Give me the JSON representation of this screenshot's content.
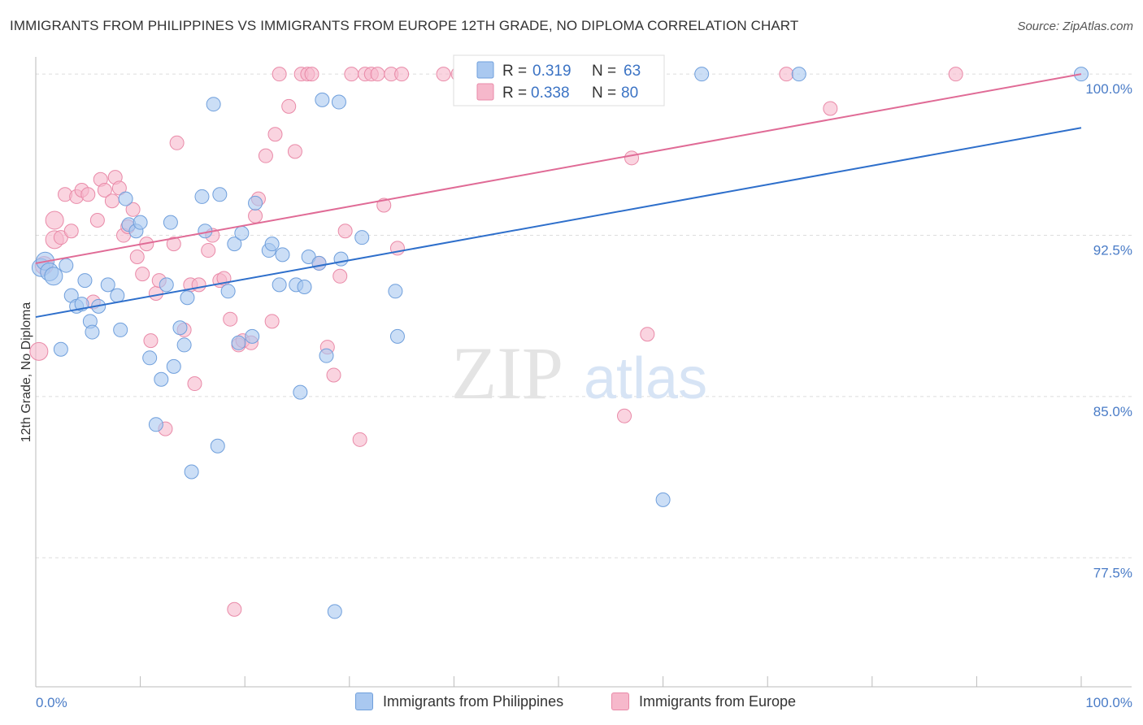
{
  "header": {
    "title": "IMMIGRANTS FROM PHILIPPINES VS IMMIGRANTS FROM EUROPE 12TH GRADE, NO DIPLOMA CORRELATION CHART",
    "source": "Source: ZipAtlas.com"
  },
  "watermark": {
    "zip": "ZIP",
    "atlas": "atlas"
  },
  "legend": {
    "r_label": "R =",
    "n_label": "N =",
    "series": [
      {
        "r": "0.319",
        "n": "63"
      },
      {
        "r": "0.338",
        "n": "80"
      }
    ]
  },
  "colors": {
    "blue_fill": "#a9c8f0",
    "blue_stroke": "#6f9fdc",
    "blue_line": "#2e6fcb",
    "pink_fill": "#f6b8cb",
    "pink_stroke": "#e98aa8",
    "pink_line": "#e06b96",
    "tick_text": "#4a7cc7",
    "grid": "#dddddd"
  },
  "chart_data": {
    "type": "scatter",
    "ylabel": "12th Grade, No Diploma",
    "xlim": [
      0,
      100
    ],
    "ylim": [
      71.5,
      100.8
    ],
    "x_tick_labels": [
      "0.0%",
      "100.0%"
    ],
    "y_ticks": [
      {
        "value": 100.0,
        "label": "100.0%"
      },
      {
        "value": 92.5,
        "label": "92.5%"
      },
      {
        "value": 85.0,
        "label": "85.0%"
      },
      {
        "value": 77.5,
        "label": "77.5%"
      }
    ],
    "grid": true,
    "legend_position": "top-center",
    "series": [
      {
        "name": "Immigrants from Philippines",
        "color": "#a9c8f0",
        "trend": {
          "x": [
            0,
            100
          ],
          "y": [
            88.7,
            97.5
          ]
        },
        "points": [
          [
            0.5,
            91.0
          ],
          [
            0.9,
            91.3
          ],
          [
            1.3,
            90.8
          ],
          [
            1.7,
            90.6
          ],
          [
            2.4,
            87.2
          ],
          [
            2.9,
            91.1
          ],
          [
            3.4,
            89.7
          ],
          [
            3.9,
            89.2
          ],
          [
            4.4,
            89.3
          ],
          [
            4.7,
            90.4
          ],
          [
            5.2,
            88.5
          ],
          [
            5.4,
            88.0
          ],
          [
            6.0,
            89.2
          ],
          [
            6.9,
            90.2
          ],
          [
            7.8,
            89.7
          ],
          [
            8.1,
            88.1
          ],
          [
            8.6,
            94.2
          ],
          [
            8.9,
            93.0
          ],
          [
            9.6,
            92.7
          ],
          [
            10.0,
            93.1
          ],
          [
            10.9,
            86.8
          ],
          [
            11.5,
            83.7
          ],
          [
            12.0,
            85.8
          ],
          [
            12.5,
            90.2
          ],
          [
            12.9,
            93.1
          ],
          [
            13.2,
            86.4
          ],
          [
            13.8,
            88.2
          ],
          [
            14.2,
            87.4
          ],
          [
            14.5,
            89.6
          ],
          [
            14.9,
            81.5
          ],
          [
            15.9,
            94.3
          ],
          [
            16.2,
            92.7
          ],
          [
            17.0,
            98.6
          ],
          [
            17.4,
            82.7
          ],
          [
            17.6,
            94.4
          ],
          [
            18.4,
            89.9
          ],
          [
            19.0,
            92.1
          ],
          [
            19.4,
            87.5
          ],
          [
            19.7,
            92.6
          ],
          [
            20.7,
            87.8
          ],
          [
            21.0,
            94.0
          ],
          [
            22.3,
            91.8
          ],
          [
            22.6,
            92.1
          ],
          [
            23.3,
            90.2
          ],
          [
            23.6,
            91.6
          ],
          [
            24.9,
            90.2
          ],
          [
            25.3,
            85.2
          ],
          [
            25.7,
            90.1
          ],
          [
            26.1,
            91.5
          ],
          [
            27.1,
            91.2
          ],
          [
            27.4,
            98.8
          ],
          [
            27.8,
            86.9
          ],
          [
            28.6,
            75.0
          ],
          [
            29.0,
            98.7
          ],
          [
            29.2,
            91.4
          ],
          [
            31.2,
            92.4
          ],
          [
            34.4,
            89.9
          ],
          [
            34.6,
            87.8
          ],
          [
            47.1,
            100.0
          ],
          [
            60.0,
            80.2
          ],
          [
            63.7,
            100.0
          ],
          [
            73.0,
            100.0
          ],
          [
            100.0,
            100.0
          ]
        ]
      },
      {
        "name": "Immigrants from Europe",
        "color": "#f6b8cb",
        "trend": {
          "x": [
            0,
            100
          ],
          "y": [
            91.2,
            100.0
          ]
        },
        "points": [
          [
            0.3,
            87.1
          ],
          [
            0.8,
            91.1
          ],
          [
            1.8,
            92.3
          ],
          [
            1.8,
            93.2
          ],
          [
            2.4,
            92.4
          ],
          [
            2.8,
            94.4
          ],
          [
            3.4,
            92.7
          ],
          [
            3.9,
            94.3
          ],
          [
            4.4,
            94.6
          ],
          [
            5.0,
            94.4
          ],
          [
            5.5,
            89.4
          ],
          [
            5.9,
            93.2
          ],
          [
            6.2,
            95.1
          ],
          [
            6.6,
            94.6
          ],
          [
            7.3,
            94.1
          ],
          [
            7.6,
            95.2
          ],
          [
            8.0,
            94.7
          ],
          [
            8.4,
            92.5
          ],
          [
            8.8,
            92.9
          ],
          [
            9.3,
            93.7
          ],
          [
            9.7,
            91.5
          ],
          [
            10.2,
            90.7
          ],
          [
            10.6,
            92.1
          ],
          [
            11.0,
            87.6
          ],
          [
            11.5,
            89.8
          ],
          [
            11.8,
            90.4
          ],
          [
            12.4,
            83.5
          ],
          [
            13.2,
            92.1
          ],
          [
            13.5,
            96.8
          ],
          [
            14.2,
            88.1
          ],
          [
            14.8,
            90.2
          ],
          [
            15.2,
            85.6
          ],
          [
            15.6,
            90.2
          ],
          [
            16.5,
            91.8
          ],
          [
            16.9,
            92.5
          ],
          [
            17.6,
            90.4
          ],
          [
            18.0,
            90.5
          ],
          [
            18.6,
            88.6
          ],
          [
            19.0,
            75.1
          ],
          [
            19.4,
            87.4
          ],
          [
            19.8,
            87.6
          ],
          [
            20.6,
            87.5
          ],
          [
            21.0,
            93.4
          ],
          [
            21.3,
            94.2
          ],
          [
            22.0,
            96.2
          ],
          [
            22.6,
            88.5
          ],
          [
            22.9,
            97.2
          ],
          [
            23.3,
            100.0
          ],
          [
            24.2,
            98.5
          ],
          [
            24.8,
            96.4
          ],
          [
            25.4,
            100.0
          ],
          [
            26.0,
            100.0
          ],
          [
            26.4,
            100.0
          ],
          [
            27.1,
            91.2
          ],
          [
            27.9,
            87.3
          ],
          [
            28.5,
            86.0
          ],
          [
            29.1,
            90.6
          ],
          [
            29.6,
            92.7
          ],
          [
            30.2,
            100.0
          ],
          [
            31.0,
            83.0
          ],
          [
            31.5,
            100.0
          ],
          [
            32.1,
            100.0
          ],
          [
            32.7,
            100.0
          ],
          [
            33.3,
            93.9
          ],
          [
            34.0,
            100.0
          ],
          [
            34.6,
            91.9
          ],
          [
            35.0,
            100.0
          ],
          [
            39.0,
            100.0
          ],
          [
            40.4,
            100.0
          ],
          [
            42.8,
            100.0
          ],
          [
            45.5,
            100.0
          ],
          [
            52.0,
            100.0
          ],
          [
            56.3,
            84.1
          ],
          [
            56.5,
            100.0
          ],
          [
            56.5,
            100.0
          ],
          [
            57.0,
            96.1
          ],
          [
            58.5,
            87.9
          ],
          [
            71.8,
            100.0
          ],
          [
            76.0,
            98.4
          ],
          [
            88.0,
            100.0
          ]
        ]
      }
    ]
  }
}
